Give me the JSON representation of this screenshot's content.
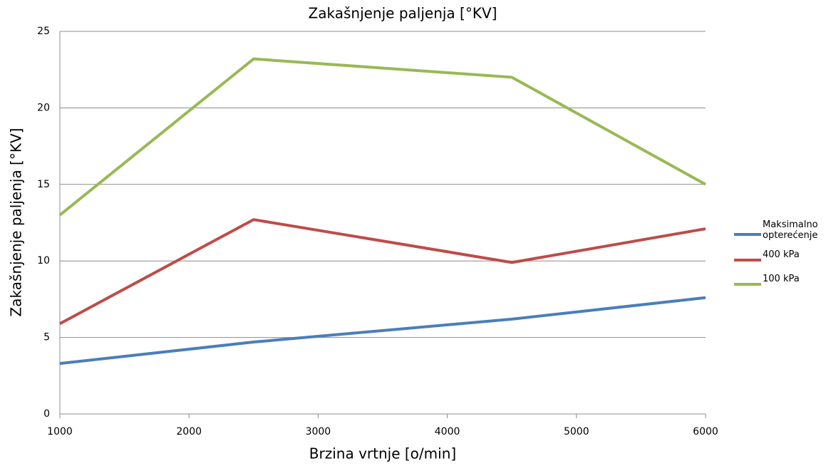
{
  "chart_data": {
    "type": "line",
    "title": "Zakašnjenje paljenja [°KV]",
    "x_label": "Brzina vrtnje [o/min]",
    "y_label": "Zakašnjenje paljenja [°KV]",
    "x": [
      1000,
      2500,
      4500,
      6000
    ],
    "series": [
      {
        "name": "Maksimalno opterećenje",
        "color": "#4a7ebb",
        "values": [
          3.3,
          4.7,
          6.2,
          7.6
        ]
      },
      {
        "name": "400 kPa",
        "color": "#be4b48",
        "values": [
          5.9,
          12.7,
          9.9,
          12.1
        ]
      },
      {
        "name": "100 kPa",
        "color": "#98b954",
        "values": [
          13.0,
          23.2,
          22.0,
          15.0
        ]
      }
    ],
    "xlim": [
      1000,
      6000
    ],
    "xticks": [
      1000,
      2000,
      3000,
      4000,
      5000,
      6000
    ],
    "ylim": [
      0,
      25
    ],
    "yticks": [
      0,
      5,
      10,
      15,
      20,
      25
    ],
    "grid": true,
    "legend": "right"
  }
}
